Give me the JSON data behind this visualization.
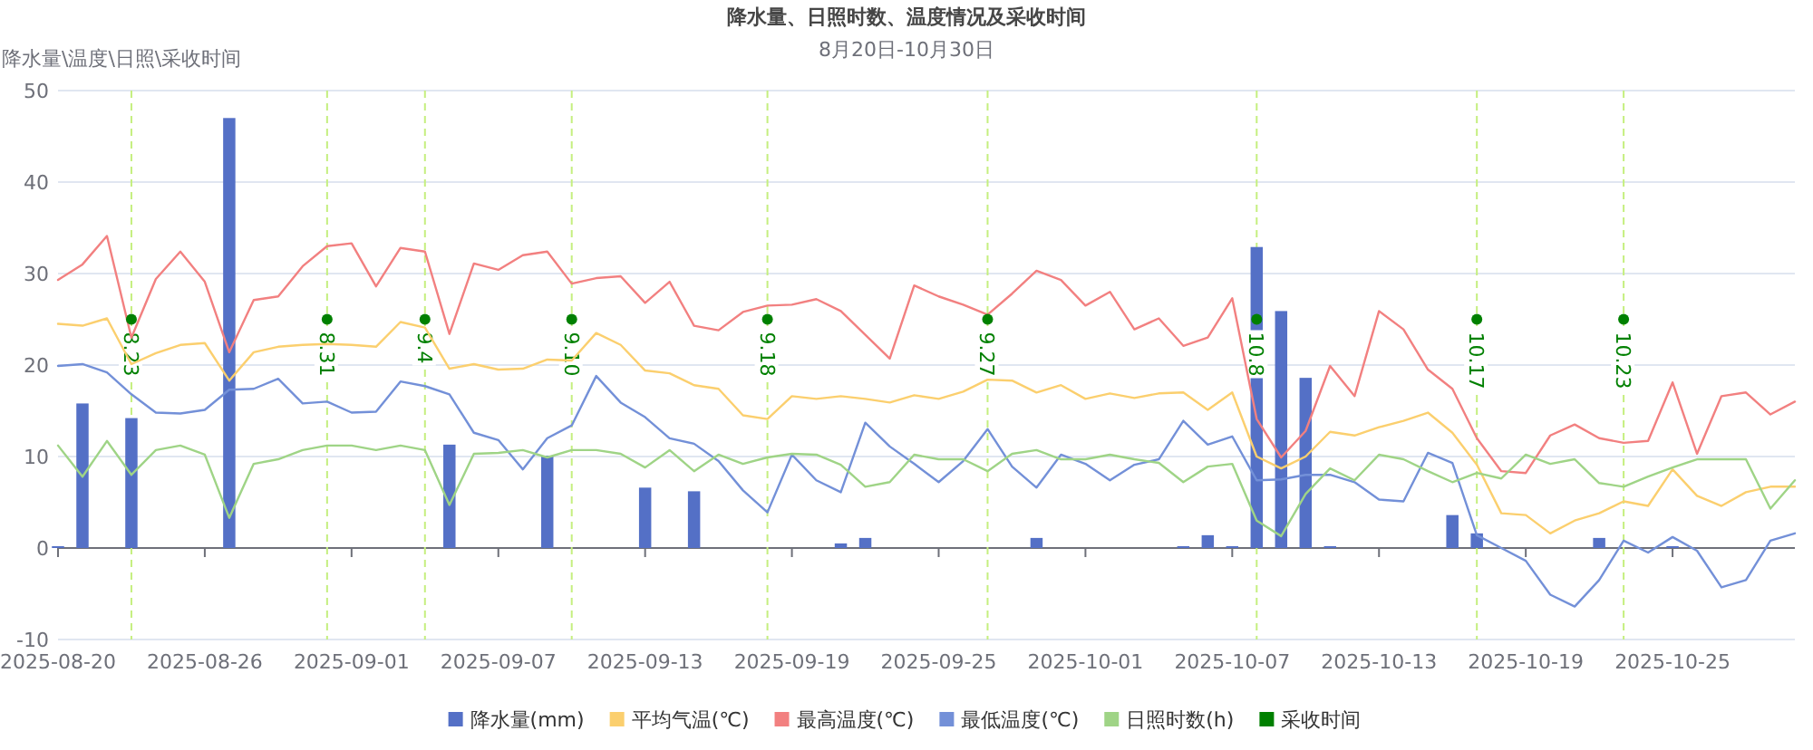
{
  "chart_data": {
    "type": "line",
    "title": "降水量、日照时数、温度情况及采收时间",
    "subtitle": "8月20日-10月30日",
    "ylabel": "降水量\\温度\\日照\\采收时间",
    "x": [
      "2025-08-20",
      "2025-08-21",
      "2025-08-22",
      "2025-08-23",
      "2025-08-24",
      "2025-08-25",
      "2025-08-26",
      "2025-08-27",
      "2025-08-28",
      "2025-08-29",
      "2025-08-30",
      "2025-08-31",
      "2025-09-01",
      "2025-09-02",
      "2025-09-03",
      "2025-09-04",
      "2025-09-05",
      "2025-09-06",
      "2025-09-07",
      "2025-09-08",
      "2025-09-09",
      "2025-09-10",
      "2025-09-11",
      "2025-09-12",
      "2025-09-13",
      "2025-09-14",
      "2025-09-15",
      "2025-09-16",
      "2025-09-17",
      "2025-09-18",
      "2025-09-19",
      "2025-09-20",
      "2025-09-21",
      "2025-09-22",
      "2025-09-23",
      "2025-09-24",
      "2025-09-25",
      "2025-09-26",
      "2025-09-27",
      "2025-09-28",
      "2025-09-29",
      "2025-09-30",
      "2025-10-01",
      "2025-10-02",
      "2025-10-03",
      "2025-10-04",
      "2025-10-05",
      "2025-10-06",
      "2025-10-07",
      "2025-10-08",
      "2025-10-09",
      "2025-10-10",
      "2025-10-11",
      "2025-10-12",
      "2025-10-13",
      "2025-10-14",
      "2025-10-15",
      "2025-10-16",
      "2025-10-17",
      "2025-10-18",
      "2025-10-19",
      "2025-10-20",
      "2025-10-21",
      "2025-10-22",
      "2025-10-23",
      "2025-10-24",
      "2025-10-25",
      "2025-10-26",
      "2025-10-27",
      "2025-10-28",
      "2025-10-29",
      "2025-10-30"
    ],
    "xlim": [
      "2025-08-20",
      "2025-10-30"
    ],
    "xticks": [
      "2025-08-20",
      "2025-08-26",
      "2025-09-01",
      "2025-09-07",
      "2025-09-13",
      "2025-09-19",
      "2025-09-25",
      "2025-10-01",
      "2025-10-07",
      "2025-10-13",
      "2025-10-19",
      "2025-10-25"
    ],
    "ylim": [
      -10,
      50
    ],
    "yticks": [
      -10,
      0,
      10,
      20,
      30,
      40,
      50
    ],
    "grid": "y",
    "legend": "bottom",
    "series": [
      {
        "name": "降水量(mm)",
        "type": "bar",
        "color": "#5470c6",
        "values": [
          0.2,
          15.8,
          0,
          14.2,
          0,
          0,
          0,
          47.0,
          0,
          0,
          0,
          0,
          0,
          0,
          0,
          0,
          11.3,
          0,
          0,
          0,
          10.1,
          0,
          0,
          0,
          6.6,
          0,
          6.2,
          0,
          0,
          0,
          0,
          0,
          0.5,
          1.1,
          0,
          0,
          0,
          0,
          0,
          0,
          1.1,
          0,
          0,
          0,
          0,
          0,
          0.2,
          1.4,
          0.2,
          32.9,
          25.9,
          18.6,
          0.2,
          0,
          0,
          0,
          0,
          3.6,
          1.6,
          0,
          0,
          0,
          0,
          1.1,
          0,
          0,
          0.2,
          0,
          0,
          0,
          0,
          0
        ]
      },
      {
        "name": "平均气温(℃)",
        "type": "line",
        "color": "#fbcf6e",
        "values": [
          24.5,
          24.3,
          25.1,
          20.1,
          21.3,
          22.2,
          22.4,
          18.3,
          21.4,
          22.0,
          22.2,
          22.3,
          22.2,
          22.0,
          24.7,
          24.1,
          19.6,
          20.1,
          19.5,
          19.6,
          20.6,
          20.5,
          23.5,
          22.2,
          19.4,
          19.1,
          17.8,
          17.4,
          14.5,
          14.1,
          16.6,
          16.3,
          16.6,
          16.3,
          15.9,
          16.7,
          16.3,
          17.1,
          18.4,
          18.3,
          17.0,
          17.8,
          16.3,
          16.9,
          16.4,
          16.9,
          17.0,
          15.1,
          17.0,
          10.0,
          8.7,
          10.0,
          12.7,
          12.3,
          13.2,
          13.9,
          14.8,
          12.6,
          9.1,
          3.8,
          3.6,
          1.6,
          3.0,
          3.8,
          5.1,
          4.6,
          8.6,
          5.7,
          4.6,
          6.1,
          6.7,
          6.7
        ]
      },
      {
        "name": "最高温度(℃)",
        "type": "line",
        "color": "#f28080",
        "values": [
          29.3,
          31.0,
          34.1,
          23.0,
          29.4,
          32.4,
          29.1,
          21.4,
          27.1,
          27.5,
          30.8,
          33.0,
          33.3,
          28.6,
          32.8,
          32.4,
          23.4,
          31.1,
          30.4,
          32.0,
          32.4,
          28.9,
          29.5,
          29.7,
          26.8,
          29.1,
          24.3,
          23.8,
          25.8,
          26.5,
          26.6,
          27.2,
          25.9,
          23.3,
          20.7,
          28.7,
          27.5,
          26.6,
          25.5,
          27.8,
          30.3,
          29.3,
          26.5,
          28.0,
          23.9,
          25.1,
          22.1,
          23.0,
          27.3,
          14.1,
          9.9,
          12.8,
          19.9,
          16.6,
          25.9,
          23.9,
          19.5,
          17.4,
          12.0,
          8.4,
          8.2,
          12.3,
          13.5,
          12.0,
          11.5,
          11.7,
          18.1,
          10.3,
          16.6,
          17.0,
          14.6,
          16.0
        ]
      },
      {
        "name": "最低温度(℃)",
        "type": "line",
        "color": "#7390d8",
        "values": [
          19.9,
          20.1,
          19.2,
          16.8,
          14.8,
          14.7,
          15.1,
          17.3,
          17.4,
          18.5,
          15.8,
          16.0,
          14.8,
          14.9,
          18.2,
          17.7,
          16.8,
          12.6,
          11.8,
          8.6,
          12.0,
          13.4,
          18.8,
          15.9,
          14.3,
          12.0,
          11.4,
          9.5,
          6.3,
          3.9,
          10.2,
          7.4,
          6.1,
          13.7,
          11.1,
          9.2,
          7.2,
          9.5,
          13.0,
          8.9,
          6.6,
          10.2,
          9.2,
          7.4,
          9.1,
          9.7,
          13.9,
          11.3,
          12.2,
          7.4,
          7.5,
          8.0,
          8.0,
          7.2,
          5.3,
          5.1,
          10.4,
          9.3,
          1.4,
          0.0,
          -1.4,
          -5.1,
          -6.4,
          -3.5,
          0.8,
          -0.5,
          1.2,
          -0.3,
          -4.3,
          -3.5,
          0.8,
          1.6
        ]
      },
      {
        "name": "日照时数(h)",
        "color": "#9fd486",
        "values": [
          11.2,
          7.8,
          11.7,
          8.0,
          10.7,
          11.2,
          10.2,
          3.3,
          9.2,
          9.7,
          10.7,
          11.2,
          11.2,
          10.7,
          11.2,
          10.7,
          4.7,
          10.3,
          10.4,
          10.7,
          9.9,
          10.7,
          10.7,
          10.3,
          8.8,
          10.7,
          8.4,
          10.2,
          9.2,
          9.9,
          10.3,
          10.2,
          9.1,
          6.7,
          7.2,
          10.2,
          9.7,
          9.7,
          8.4,
          10.3,
          10.7,
          9.7,
          9.7,
          10.2,
          9.7,
          9.3,
          7.2,
          8.9,
          9.2,
          3.0,
          1.3,
          5.9,
          8.7,
          7.4,
          10.2,
          9.7,
          8.4,
          7.2,
          8.2,
          7.6,
          10.2,
          9.2,
          9.7,
          7.1,
          6.7,
          7.8,
          8.8,
          9.7,
          9.7,
          9.7,
          4.3,
          7.4
        ]
      },
      {
        "name": "采收时间",
        "type": "scatter",
        "color": "#008000",
        "marker": "circle",
        "x": [
          "2025-08-23",
          "2025-08-31",
          "2025-09-04",
          "2025-09-10",
          "2025-09-18",
          "2025-09-27",
          "2025-10-08",
          "2025-10-17",
          "2025-10-23"
        ],
        "values": [
          25,
          25,
          25,
          25,
          25,
          25,
          25,
          25,
          25
        ]
      }
    ],
    "annotations": [
      {
        "text": "8.23",
        "x": "2025-08-23",
        "y": 25
      },
      {
        "text": "8.31",
        "x": "2025-08-31",
        "y": 25
      },
      {
        "text": "9.4",
        "x": "2025-09-04",
        "y": 25
      },
      {
        "text": "9.10",
        "x": "2025-09-10",
        "y": 25
      },
      {
        "text": "9.18",
        "x": "2025-09-18",
        "y": 25
      },
      {
        "text": "9.27",
        "x": "2025-09-27",
        "y": 25
      },
      {
        "text": "10.8",
        "x": "2025-10-08",
        "y": 25
      },
      {
        "text": "10.17",
        "x": "2025-10-17",
        "y": 25
      },
      {
        "text": "10.23",
        "x": "2025-10-23",
        "y": 25
      }
    ],
    "ref_lines": [
      {
        "axis": "x",
        "value": "2025-08-23",
        "color": "#c5ef7f",
        "line_style": "dashed"
      },
      {
        "axis": "x",
        "value": "2025-08-31",
        "color": "#c5ef7f",
        "line_style": "dashed"
      },
      {
        "axis": "x",
        "value": "2025-09-04",
        "color": "#c5ef7f",
        "line_style": "dashed"
      },
      {
        "axis": "x",
        "value": "2025-09-10",
        "color": "#c5ef7f",
        "line_style": "dashed"
      },
      {
        "axis": "x",
        "value": "2025-09-18",
        "color": "#c5ef7f",
        "line_style": "dashed"
      },
      {
        "axis": "x",
        "value": "2025-09-27",
        "color": "#c5ef7f",
        "line_style": "dashed"
      },
      {
        "axis": "x",
        "value": "2025-10-08",
        "color": "#c5ef7f",
        "line_style": "dashed"
      },
      {
        "axis": "x",
        "value": "2025-10-17",
        "color": "#c5ef7f",
        "line_style": "dashed"
      },
      {
        "axis": "x",
        "value": "2025-10-23",
        "color": "#c5ef7f",
        "line_style": "dashed"
      }
    ]
  }
}
